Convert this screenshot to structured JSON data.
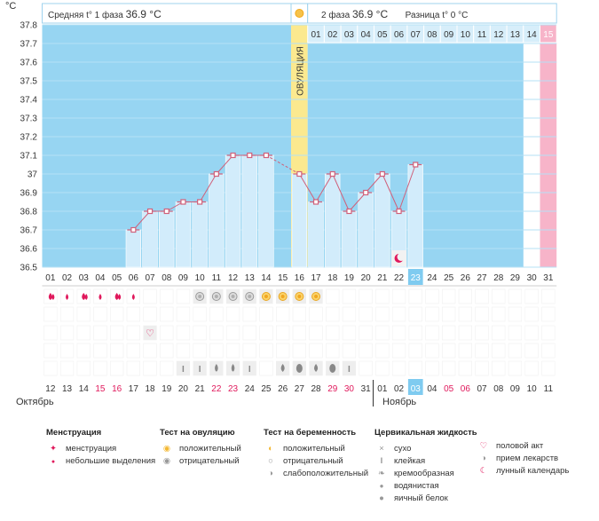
{
  "header": {
    "unit": "°C",
    "phase1_label": "Средняя t° 1 фаза",
    "phase1_value": "36.9 °C",
    "phase2_label": "2 фаза",
    "phase2_value": "36.9 °C",
    "diff_label": "Разница t°",
    "diff_value": "0 °C"
  },
  "ovulation_label": "ОВУЛЯЦИЯ",
  "cycle_days": [
    "01",
    "02",
    "03",
    "04",
    "05",
    "06",
    "07",
    "08",
    "09",
    "10",
    "11",
    "12",
    "13",
    "14",
    "15",
    "16",
    "17",
    "18",
    "19",
    "20",
    "21",
    "22",
    "23",
    "24",
    "25",
    "26",
    "27",
    "28",
    "29",
    "30",
    "31"
  ],
  "today_index": 22,
  "phase2_numbers": [
    "01",
    "02",
    "03",
    "04",
    "05",
    "06",
    "07",
    "08",
    "09",
    "10",
    "11",
    "12",
    "13",
    "14",
    "15"
  ],
  "phase2_highlight": 14,
  "calendar": {
    "dates": [
      "12",
      "13",
      "14",
      "15",
      "16",
      "17",
      "18",
      "19",
      "20",
      "21",
      "22",
      "23",
      "24",
      "25",
      "26",
      "27",
      "28",
      "29",
      "30",
      "31",
      "01",
      "02",
      "03",
      "04",
      "05",
      "06",
      "07",
      "08",
      "09",
      "10",
      "11"
    ],
    "red_indices": [
      3,
      4,
      10,
      11,
      17,
      18,
      24,
      25
    ],
    "month1": "Октябрь",
    "month2": "Ноябрь"
  },
  "chart_data": {
    "type": "line",
    "title": "",
    "xlabel": "",
    "ylabel": "°C",
    "ylim": [
      36.5,
      37.8
    ],
    "y_ticks": [
      36.5,
      36.6,
      36.7,
      36.8,
      36.9,
      37,
      37.1,
      37.2,
      37.3,
      37.4,
      37.5,
      37.6,
      37.7,
      37.8
    ],
    "x": [
      6,
      7,
      8,
      9,
      10,
      11,
      12,
      13,
      14,
      16,
      17,
      18,
      19,
      20,
      21,
      22,
      23
    ],
    "y": [
      36.7,
      36.8,
      36.8,
      36.85,
      36.85,
      37.0,
      37.1,
      37.1,
      37.1,
      37.0,
      36.85,
      37.0,
      36.8,
      36.9,
      37.0,
      36.8,
      37.05
    ],
    "dashed_segment": [
      14,
      16
    ],
    "ovulation_day": 16,
    "cycle_end_day": 31
  },
  "symbols": {
    "menstruation": [
      1,
      3,
      5
    ],
    "spotting": [
      2,
      4,
      6
    ],
    "ovulation_neg": [
      10,
      11,
      12,
      13
    ],
    "ovulation_pos": [
      14,
      15,
      16,
      17
    ],
    "intercourse": [
      7
    ],
    "sticky": [
      9,
      10,
      13,
      19
    ],
    "creamy": [
      11,
      12
    ],
    "watery": [
      15,
      17
    ],
    "eggwhite": [
      16,
      18
    ]
  },
  "legend": {
    "menstruation": {
      "title": "Менструация",
      "items": [
        "менструация",
        "небольшие выделения"
      ]
    },
    "ovulation_test": {
      "title": "Тест на овуляцию",
      "items": [
        "положительный",
        "отрицательный"
      ]
    },
    "pregnancy_test": {
      "title": "Тест на беременность",
      "items": [
        "положительный",
        "отрицательный",
        "слабоположительный"
      ]
    },
    "cervical_fluid": {
      "title": "Цервикальная жидкость",
      "items": [
        "сухо",
        "клейкая",
        "кремообразная",
        "водянистая",
        "яичный белок"
      ]
    },
    "other": {
      "items": [
        "половой акт",
        "прием лекарств",
        "лунный календарь"
      ]
    }
  },
  "colors": {
    "chart_bg": "#97d5f2",
    "bar": "#d2ecfb",
    "line": "#d0607a",
    "ovulation": "#fbe98f",
    "end": "#f7b4c9",
    "accent": "#e0195c"
  }
}
